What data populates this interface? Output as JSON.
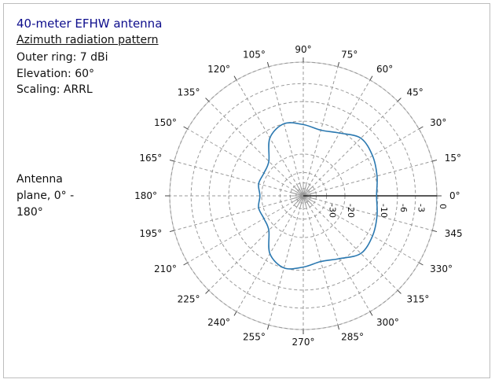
{
  "info": {
    "title": "40-meter EFHW antenna",
    "subtitle": "Azimuth radiation pattern",
    "outer_ring": "Outer ring: 7 dBi",
    "elevation": "Elevation: 60°",
    "scaling": "Scaling: ARRL",
    "plane_note": "Antenna plane, 0° - 180°"
  },
  "colors": {
    "pattern": "#2a78b0",
    "grid": "#999999",
    "frame": "#bdbdbd",
    "title": "#0d0d8c"
  },
  "chart_data": {
    "type": "polar-line",
    "angular_unit": "degrees",
    "angular_ticks": [
      0,
      15,
      30,
      45,
      60,
      75,
      90,
      105,
      120,
      135,
      150,
      165,
      180,
      195,
      210,
      225,
      240,
      255,
      270,
      285,
      300,
      315,
      330,
      345
    ],
    "angular_tick_labels": [
      "0°",
      "15°",
      "30°",
      "45°",
      "60°",
      "75°",
      "90°",
      "105°",
      "120°",
      "135°",
      "150°",
      "165°",
      "180°",
      "195°",
      "210°",
      "225°",
      "240°",
      "255°",
      "270°",
      "285°",
      "300°",
      "315°",
      "330°",
      "345"
    ],
    "radial_unit": "dB relative to outer ring (ARRL log scale)",
    "radial_ticks": [
      -30,
      -20,
      -10,
      -6,
      -3,
      0
    ],
    "radial_tick_labels": [
      "-30",
      "-20",
      "-10",
      "-6",
      "-3",
      "0"
    ],
    "radial_extra_rings": [
      -40,
      -50
    ],
    "outer_ring_dbi": 7,
    "grid": true,
    "series": [
      {
        "azimuth_deg": [
          0,
          15,
          30,
          45,
          60,
          75,
          90,
          105,
          120,
          135,
          150,
          165,
          180,
          195,
          210,
          225,
          240,
          255,
          270,
          285,
          300,
          315,
          330,
          345,
          360
        ],
        "gain_db": [
          -10.3,
          -9.6,
          -8.8,
          -8.5,
          -10.5,
          -11.6,
          -10.8,
          -10.0,
          -11.9,
          -17.3,
          -18.5,
          -18.2,
          -19.3,
          -18.2,
          -18.5,
          -17.3,
          -11.9,
          -10.0,
          -10.8,
          -11.6,
          -10.5,
          -8.5,
          -8.8,
          -9.6,
          -10.3
        ]
      }
    ]
  }
}
